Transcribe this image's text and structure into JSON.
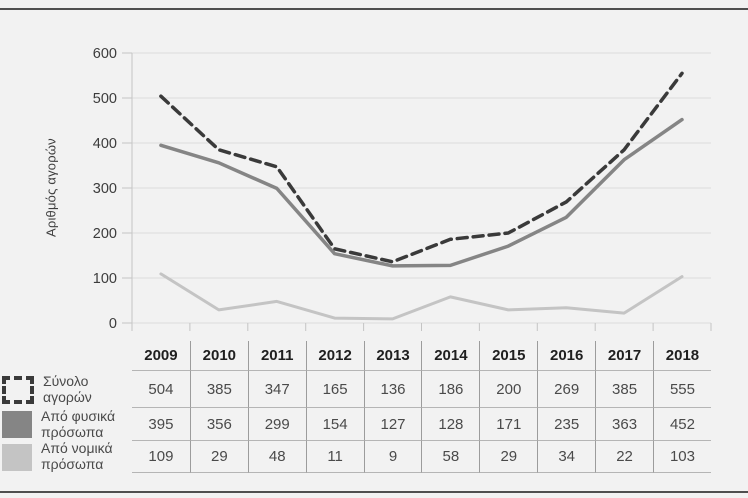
{
  "chart_data": {
    "type": "line",
    "title": "",
    "xlabel": "",
    "ylabel": "Αριθμός αγορών",
    "ylim": [
      0,
      600
    ],
    "yticks": [
      0,
      100,
      200,
      300,
      400,
      500,
      600
    ],
    "grid": true,
    "legend_position": "table-row-labels",
    "categories": [
      "2009",
      "2010",
      "2011",
      "2012",
      "2013",
      "2014",
      "2015",
      "2016",
      "2017",
      "2018"
    ],
    "series": [
      {
        "name": "Σύνολο αγορών",
        "style": "dashed",
        "color": "#3a3a3a",
        "values": [
          504,
          385,
          347,
          165,
          136,
          186,
          200,
          269,
          385,
          555
        ]
      },
      {
        "name": "Από φυσικά πρόσωπα",
        "style": "solid",
        "color": "#858585",
        "values": [
          395,
          356,
          299,
          154,
          127,
          128,
          171,
          235,
          363,
          452
        ]
      },
      {
        "name": "Από νομικά πρόσωπα",
        "style": "solid",
        "color": "#c4c4c4",
        "values": [
          109,
          29,
          48,
          11,
          9,
          58,
          29,
          34,
          22,
          103
        ]
      }
    ]
  },
  "colors": {
    "background": "#f2f2f2",
    "frame_border": "#4f4f4f",
    "gridline": "#dcdcdc",
    "axis": "#c4c4c4",
    "table_vline": "#9c9c9c",
    "table_hline": "#b5b5b5",
    "header_text": "#1f1f1f",
    "cell_text": "#4a4a4a"
  }
}
